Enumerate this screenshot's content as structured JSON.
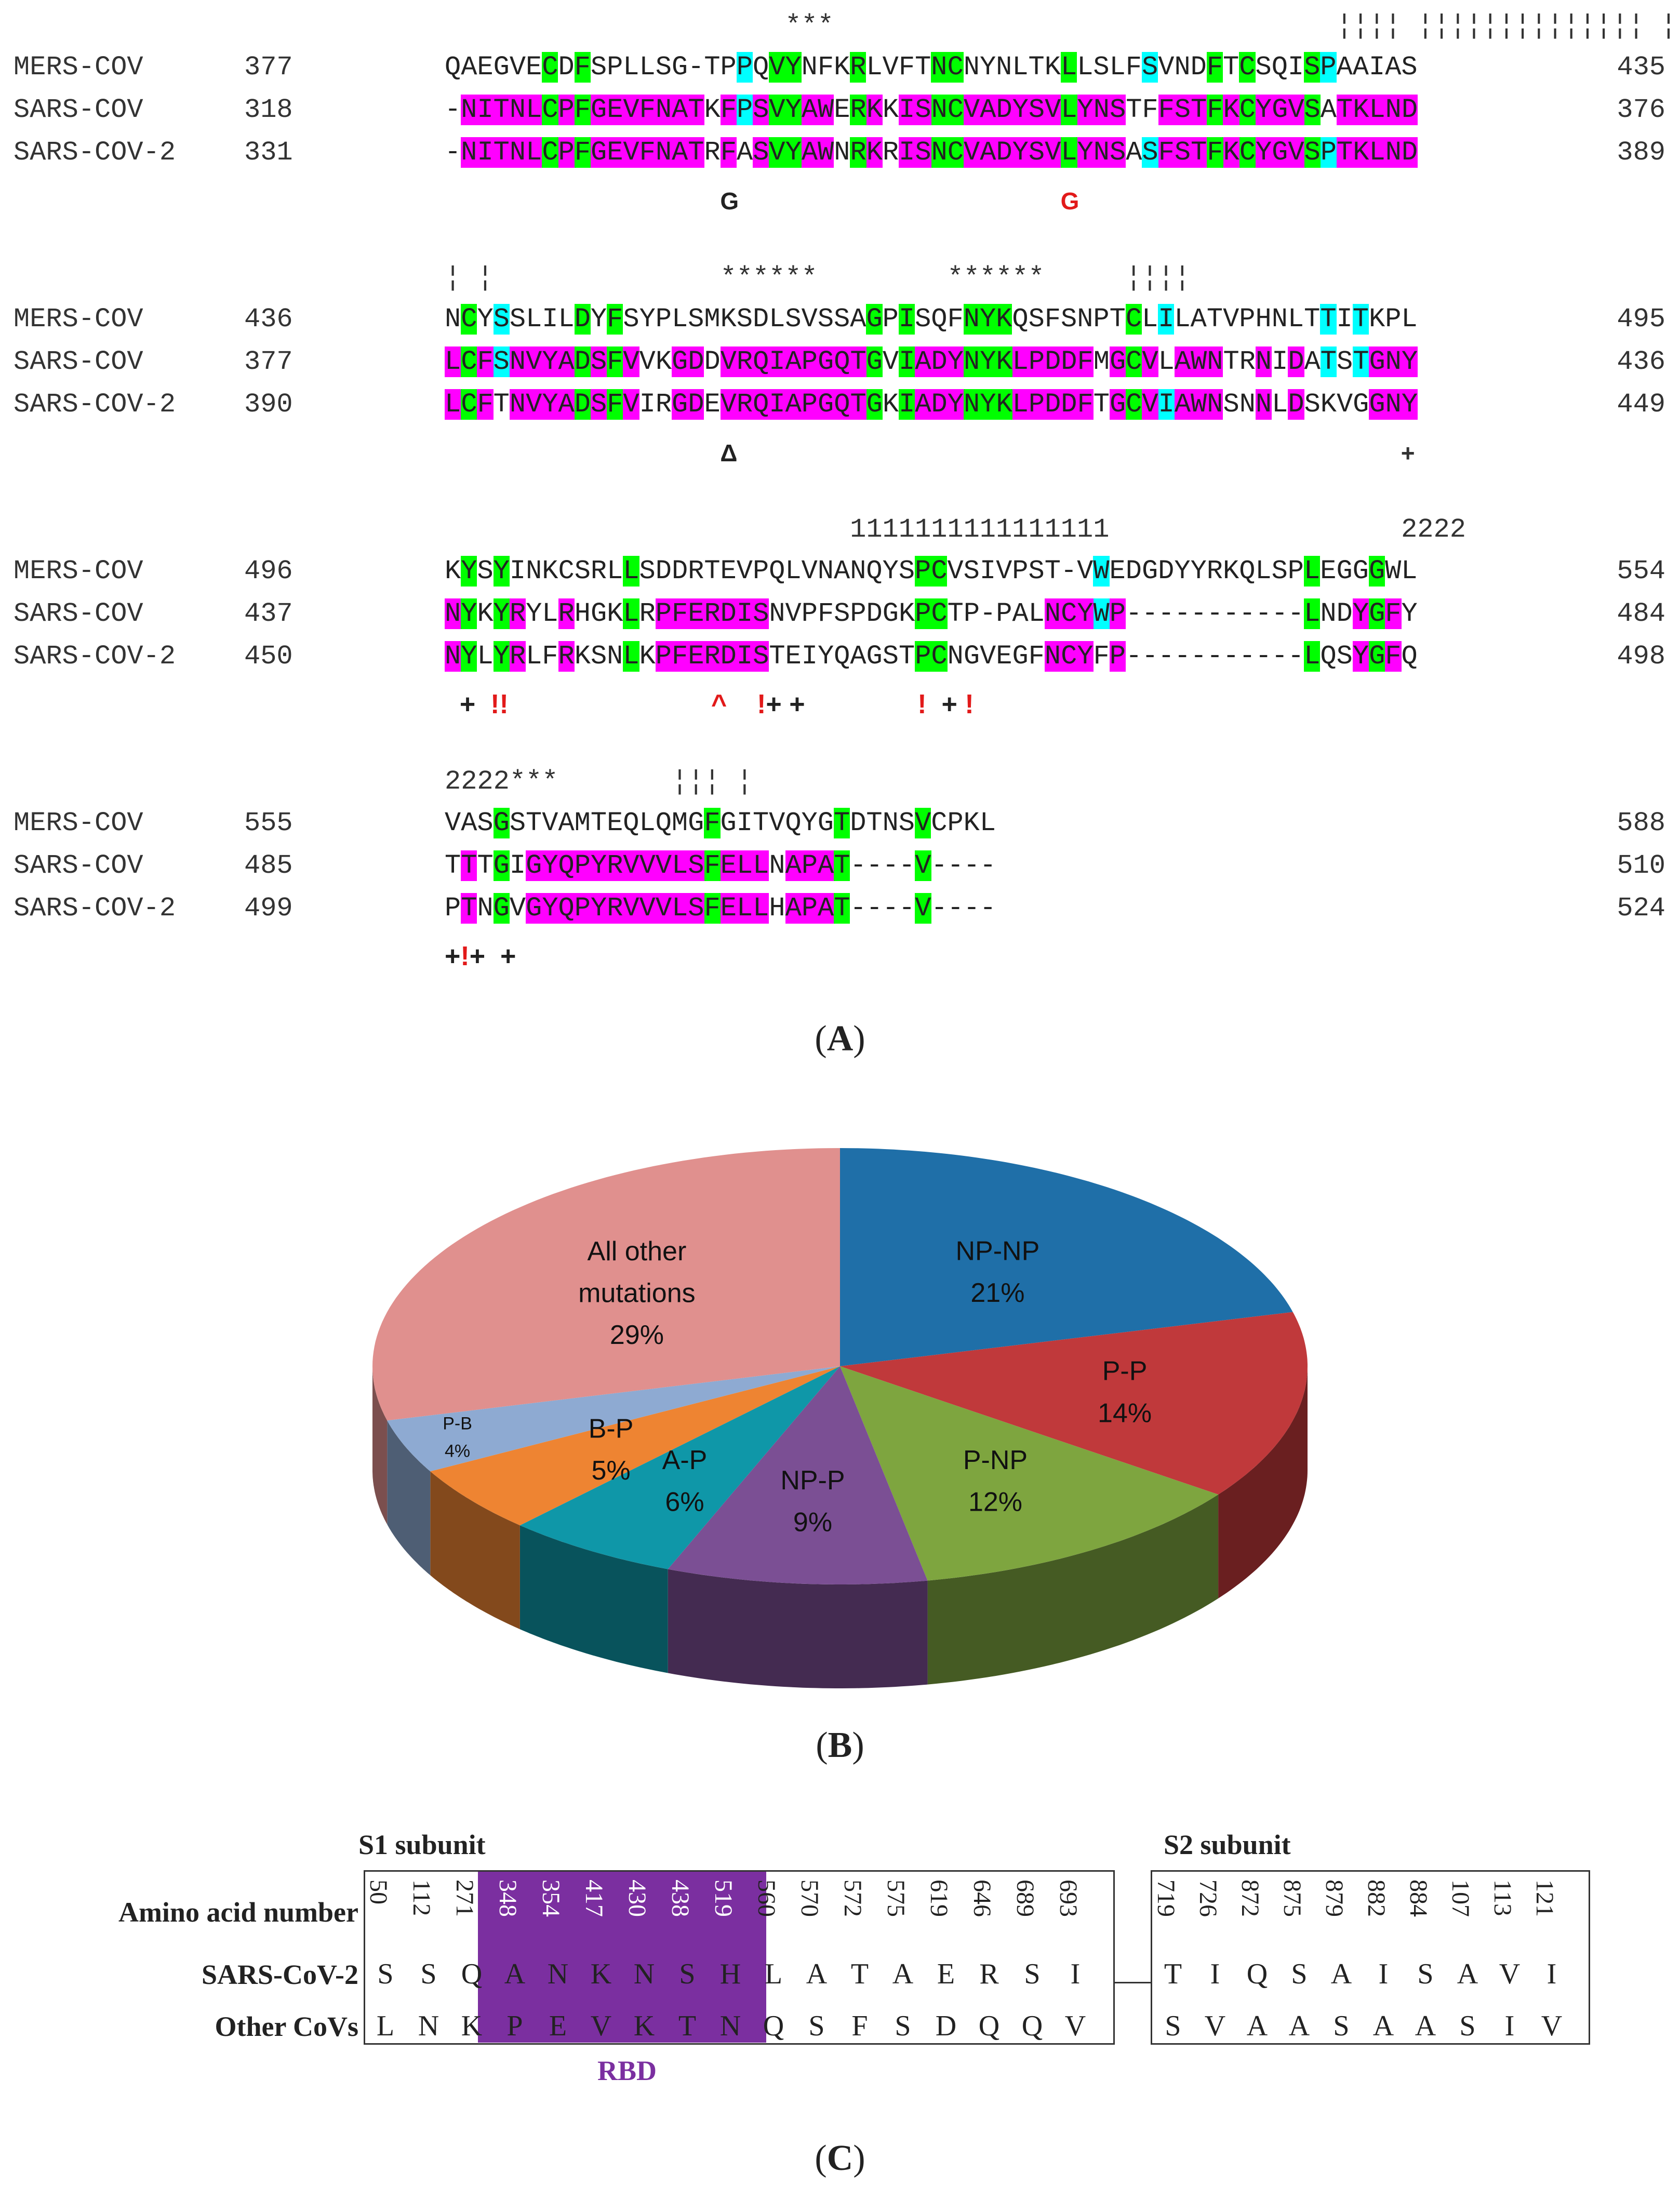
{
  "panel_a": {
    "caption_open": "(",
    "caption_letter": "A",
    "caption_close": ")",
    "blocks": [
      {
        "ann_top": "                     ***                               ¦¦¦¦ ¦¦¦¦¦¦¦¦¦¦¦¦¦¦ ¦",
        "rows": [
          {
            "name": "MERS-COV",
            "start": "377",
            "end": "435",
            "seq": "QAEGVECDFSPLLSG-TPPQVYNFKRLVFTNCNYNLTKLLSLFSVNDFTCSQISPAAIAS"
          },
          {
            "name": "SARS-COV",
            "start": "318",
            "end": "376",
            "seq": "-NITNLCPFGEVFNATKFPSVYAWERKKISNCVADYSVLYNSTFFSTFKCYGVSATKLND"
          },
          {
            "name": "SARS-COV-2",
            "start": "331",
            "end": "389",
            "seq": "-NITNLCPFGEVFNATRFASVYAWNRKRISNCVADYSVLYNSASFSTFKCYGVSPTKLND"
          }
        ],
        "marks_left": "G",
        "marks_right": "G"
      },
      {
        "ann_top": "¦ ¦              ******        ******     ¦¦¦¦",
        "rows": [
          {
            "name": "MERS-COV",
            "start": "436",
            "end": "495",
            "seq": "NCYSSLILDYFSYPLSMKSDLSVSSAGPISQFNYKQSFSNPTCLILATVPHNLTTITKPL"
          },
          {
            "name": "SARS-COV",
            "start": "377",
            "end": "436",
            "seq": "LCFSNVYADSFVVKGDDVRQIAPGQTGVIADYNYKLPDDFMGCVLAWNTRNIDATSTGNY"
          },
          {
            "name": "SARS-COV-2",
            "start": "390",
            "end": "449",
            "seq": "LCFTNVYADSFVIRGDEVRQIAPGQTGKIADYNYKLPDDFTGCVIAWNSNNLDSKVGGNY"
          }
        ],
        "marks_left": "Δ",
        "marks_right": "+"
      },
      {
        "ann_top": "                         1111111111111111                  2222",
        "rows": [
          {
            "name": "MERS-COV",
            "start": "496",
            "end": "554",
            "seq": "KYSYINKCSRLLSDDRTEVPQLVNANQYSPCVSIVPST-VWEDGDYYRKQLSPLEGGGWL"
          },
          {
            "name": "SARS-COV",
            "start": "437",
            "end": "484",
            "seq": "NYKYRYLRHGKLRPFERDISNVPFSPDGKPCTP-PALNCYWP-----------LNDYGFY"
          },
          {
            "name": "SARS-COV-2",
            "start": "450",
            "end": "498",
            "seq": "NYLYRLFRKSNLKPFERDISTEIYQAGSTPCNGVEGFNCYFP-----------LQSYGFQ"
          }
        ],
        "marks": "  +  !!                           ^    !+ +               !  + !"
      },
      {
        "ann_top": "2222***       ¦¦¦ ¦",
        "rows": [
          {
            "name": "MERS-COV",
            "start": "555",
            "end": "588",
            "seq": "VASGSTVAMTEQLQMGFGITVQYGTDTNSVCPKL"
          },
          {
            "name": "SARS-COV",
            "start": "485",
            "end": "510",
            "seq": "TTTGIGYQPYRVVVLSFELLNAPAT----V----"
          },
          {
            "name": "SARS-COV-2",
            "start": "499",
            "end": "524",
            "seq": "PTNGVGYQPYRVVVLSFELLHAPAT----V----"
          }
        ],
        "marks": "+!+  +"
      }
    ]
  },
  "panel_b": {
    "caption_open": "(",
    "caption_letter": "B",
    "caption_close": ")",
    "chart_data": {
      "type": "pie",
      "title": "",
      "slices": [
        {
          "label": "NP-NP",
          "value": 21,
          "text": "21%",
          "color": "#1f6fa8"
        },
        {
          "label": "P-P",
          "value": 14,
          "text": "14%",
          "color": "#c0393b"
        },
        {
          "label": "P-NP",
          "value": 12,
          "text": "12%",
          "color": "#7ea53f"
        },
        {
          "label": "NP-P",
          "value": 9,
          "text": "9%",
          "color": "#7b4f94"
        },
        {
          "label": "A-P",
          "value": 6,
          "text": "6%",
          "color": "#0f97a8"
        },
        {
          "label": "B-P",
          "value": 5,
          "text": "5%",
          "color": "#ee8432"
        },
        {
          "label": "P-B",
          "value": 4,
          "text": "4%",
          "color": "#8eaad2"
        },
        {
          "label": "All other mutations",
          "value": 29,
          "text": "29%",
          "color": "#e0908e"
        }
      ]
    }
  },
  "panel_c": {
    "caption_open": "(",
    "caption_letter": "C",
    "caption_close": ")",
    "s1_title": "S1 subunit",
    "s2_title": "S2 subunit",
    "row_label_aa": "Amino acid number",
    "row_label_sars2": "SARS-CoV-2",
    "row_label_other": "Other CoVs",
    "rbd_label": "RBD",
    "s1": {
      "numbers": [
        "50",
        "112",
        "271",
        "348",
        "354",
        "417",
        "430",
        "438",
        "519",
        "560",
        "570",
        "572",
        "575",
        "619",
        "646",
        "689",
        "693"
      ],
      "sars2": [
        "S",
        "S",
        "Q",
        "A",
        "N",
        "K",
        "N",
        "S",
        "H",
        "L",
        "A",
        "T",
        "A",
        "E",
        "R",
        "S",
        "I"
      ],
      "other": [
        "L",
        "N",
        "K",
        "P",
        "E",
        "V",
        "K",
        "T",
        "N",
        "Q",
        "S",
        "F",
        "S",
        "D",
        "Q",
        "Q",
        "V"
      ]
    },
    "s2": {
      "numbers": [
        "719",
        "726",
        "872",
        "875",
        "879",
        "882",
        "884",
        "107",
        "113",
        "121"
      ],
      "sars2": [
        "T",
        "I",
        "Q",
        "S",
        "A",
        "I",
        "S",
        "A",
        "V",
        "I"
      ],
      "other": [
        "S",
        "V",
        "A",
        "A",
        "S",
        "A",
        "A",
        "S",
        "I",
        "V"
      ]
    }
  }
}
